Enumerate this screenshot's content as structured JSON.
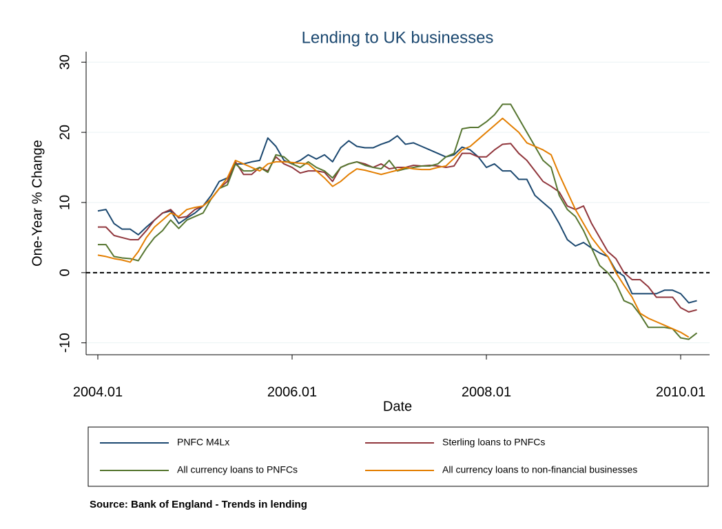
{
  "chart_data": {
    "type": "line",
    "title": "Lending to UK businesses",
    "x_label": "Date",
    "y_label": "One-Year % Change",
    "x": [
      "2004.01",
      "2004.02",
      "2004.03",
      "2004.04",
      "2004.05",
      "2004.06",
      "2004.07",
      "2004.08",
      "2004.09",
      "2004.10",
      "2004.11",
      "2004.12",
      "2005.01",
      "2005.02",
      "2005.03",
      "2005.04",
      "2005.05",
      "2005.06",
      "2005.07",
      "2005.08",
      "2005.09",
      "2005.10",
      "2005.11",
      "2005.12",
      "2006.01",
      "2006.02",
      "2006.03",
      "2006.04",
      "2006.05",
      "2006.06",
      "2006.07",
      "2006.08",
      "2006.09",
      "2006.10",
      "2006.11",
      "2006.12",
      "2007.01",
      "2007.02",
      "2007.03",
      "2007.04",
      "2007.05",
      "2007.06",
      "2007.07",
      "2007.08",
      "2007.09",
      "2007.10",
      "2007.11",
      "2007.12",
      "2008.01",
      "2008.02",
      "2008.03",
      "2008.04",
      "2008.05",
      "2008.06",
      "2008.07",
      "2008.08",
      "2008.09",
      "2008.10",
      "2008.11",
      "2008.12",
      "2009.01",
      "2009.02",
      "2009.03",
      "2009.04",
      "2009.05",
      "2009.06",
      "2009.07",
      "2009.08",
      "2009.09",
      "2009.10",
      "2009.11",
      "2009.12",
      "2010.01",
      "2010.02",
      "2010.03"
    ],
    "series": [
      {
        "name": "PNFC M4Lx",
        "color": "#1a476f",
        "values": [
          8.8,
          9.0,
          7.0,
          6.2,
          6.2,
          5.4,
          6.5,
          7.5,
          8.5,
          8.8,
          7.0,
          7.8,
          8.5,
          9.5,
          11.0,
          13.0,
          13.5,
          15.5,
          15.5,
          15.8,
          16.0,
          19.2,
          18.0,
          16.0,
          15.5,
          16.0,
          16.8,
          16.2,
          16.8,
          15.8,
          17.8,
          18.8,
          18.0,
          17.8,
          17.8,
          18.3,
          18.7,
          19.5,
          18.3,
          18.5,
          18.0,
          17.5,
          17.0,
          16.5,
          16.8,
          17.9,
          17.5,
          16.5,
          15.0,
          15.5,
          14.5,
          14.5,
          13.3,
          13.3,
          11.0,
          10.0,
          9.0,
          7.0,
          4.7,
          3.8,
          4.3,
          3.5,
          2.8,
          2.3,
          0.3,
          -0.5,
          -3.0,
          -3.0,
          -3.0,
          -3.0,
          -2.5,
          -2.5,
          -3.0,
          -4.3,
          -4.0
        ]
      },
      {
        "name": "Sterling loans to PNFCs",
        "color": "#90353b",
        "values": [
          6.5,
          6.5,
          5.3,
          5.0,
          4.7,
          4.7,
          6.0,
          7.5,
          8.5,
          9.0,
          7.8,
          8.0,
          9.0,
          9.5,
          10.5,
          12.0,
          13.0,
          15.8,
          14.0,
          14.0,
          15.0,
          14.5,
          16.5,
          15.5,
          15.0,
          14.2,
          14.5,
          14.5,
          14.3,
          13.0,
          15.0,
          15.5,
          15.8,
          15.5,
          15.0,
          15.5,
          14.8,
          15.0,
          15.0,
          15.3,
          15.2,
          15.3,
          15.2,
          15.0,
          15.2,
          17.0,
          17.0,
          16.5,
          16.5,
          17.5,
          18.3,
          18.4,
          17.0,
          16.0,
          14.5,
          13.0,
          12.3,
          11.5,
          9.5,
          9.0,
          9.5,
          7.0,
          5.0,
          3.0,
          2.0,
          0,
          -1.0,
          -1.0,
          -2.0,
          -3.5,
          -3.5,
          -3.5,
          -5.0,
          -5.6,
          -5.3
        ]
      },
      {
        "name": "All currency loans to PNFCs",
        "color": "#55752f",
        "values": [
          4.0,
          4.0,
          2.3,
          2.1,
          2.0,
          1.7,
          3.5,
          5.0,
          6.0,
          7.5,
          6.3,
          7.5,
          8.0,
          8.5,
          10.5,
          12.0,
          12.5,
          15.5,
          14.5,
          14.5,
          15.0,
          14.3,
          16.8,
          16.5,
          15.5,
          15.0,
          15.8,
          15.0,
          14.5,
          13.5,
          15.0,
          15.5,
          15.8,
          15.3,
          15.0,
          14.8,
          16.0,
          14.5,
          14.8,
          15.0,
          15.2,
          15.2,
          15.5,
          16.5,
          17.0,
          20.5,
          20.7,
          20.7,
          21.5,
          22.5,
          24.0,
          24.0,
          22.0,
          20.0,
          18.0,
          16.0,
          15.0,
          11.0,
          9.0,
          8.0,
          6.0,
          3.5,
          1.0,
          0,
          -1.5,
          -4.0,
          -4.5,
          -6.0,
          -7.8,
          -7.8,
          -7.8,
          -8.0,
          -9.3,
          -9.5,
          -8.6
        ]
      },
      {
        "name": "All currency loans to non-financial businesses",
        "color": "#e37e00",
        "values": [
          2.5,
          2.3,
          2.0,
          1.8,
          1.5,
          3.0,
          5.0,
          6.5,
          7.5,
          8.5,
          8.0,
          9.0,
          9.3,
          9.5,
          10.5,
          12.0,
          13.5,
          16.0,
          15.5,
          15.0,
          14.5,
          15.5,
          15.8,
          15.8,
          15.7,
          15.6,
          15.5,
          14.5,
          13.5,
          12.3,
          13.0,
          14.0,
          14.8,
          14.6,
          14.3,
          14.0,
          14.3,
          14.6,
          15.0,
          14.8,
          14.7,
          14.7,
          15.0,
          15.2,
          16.3,
          17.5,
          18.0,
          19.0,
          20.0,
          21.0,
          22.0,
          21.0,
          20.0,
          18.5,
          18.0,
          17.5,
          16.8,
          14.0,
          11.5,
          9.0,
          7.0,
          5.0,
          3.5,
          2.3,
          0,
          -1.8,
          -3.5,
          -5.8,
          -6.5,
          -7.0,
          -7.5,
          -8.0,
          -8.5,
          -9.2,
          null
        ]
      }
    ],
    "xticks": [
      "2004.01",
      "2006.01",
      "2008.01",
      "2010.01"
    ],
    "ylim": [
      -11.7,
      31.5
    ],
    "yticks": [
      -10,
      0,
      10,
      20,
      30
    ],
    "grid": true,
    "reference_line": 0,
    "source": "Source: Bank of England - Trends in lending"
  }
}
